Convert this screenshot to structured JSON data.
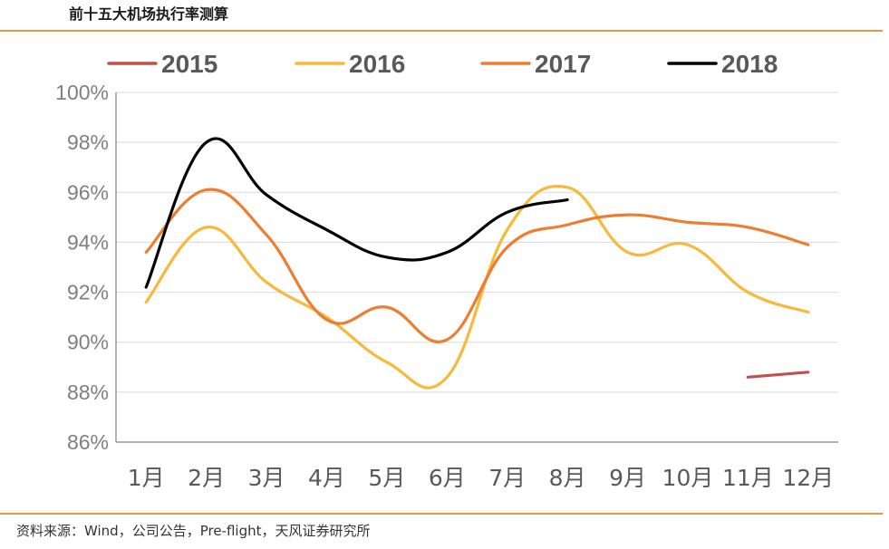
{
  "header": {
    "title": "前十五大机场执行率测算"
  },
  "footer": {
    "source": "资料来源：Wind，公司公告，Pre-flight，天风证券研究所"
  },
  "chart_data": {
    "type": "line",
    "title": "前十五大机场执行率测算",
    "xlabel": "",
    "ylabel": "",
    "categories": [
      "1月",
      "2月",
      "3月",
      "4月",
      "5月",
      "6月",
      "7月",
      "8月",
      "9月",
      "10月",
      "11月",
      "12月"
    ],
    "ylim": [
      86,
      100
    ],
    "yticks": [
      86,
      88,
      90,
      92,
      94,
      96,
      98,
      100
    ],
    "ytick_labels": [
      "86%",
      "88%",
      "90%",
      "92%",
      "94%",
      "96%",
      "98%",
      "100%"
    ],
    "legend_position": "top",
    "grid": true,
    "series": [
      {
        "name": "2015",
        "color": "#c0504d",
        "values": [
          null,
          null,
          null,
          null,
          null,
          null,
          null,
          null,
          null,
          null,
          88.6,
          88.8
        ]
      },
      {
        "name": "2016",
        "color": "#f6b93b",
        "values": [
          91.6,
          94.6,
          92.4,
          91.0,
          89.2,
          88.6,
          94.5,
          96.2,
          93.6,
          93.9,
          92.0,
          91.2
        ]
      },
      {
        "name": "2017",
        "color": "#ed7d31",
        "values": [
          93.6,
          96.1,
          94.3,
          90.9,
          91.4,
          90.1,
          93.8,
          94.7,
          95.1,
          94.8,
          94.6,
          93.9
        ]
      },
      {
        "name": "2018",
        "color": "#000000",
        "values": [
          92.2,
          98.0,
          95.9,
          94.5,
          93.4,
          93.6,
          95.2,
          95.7,
          null,
          null,
          null,
          null
        ]
      }
    ]
  }
}
